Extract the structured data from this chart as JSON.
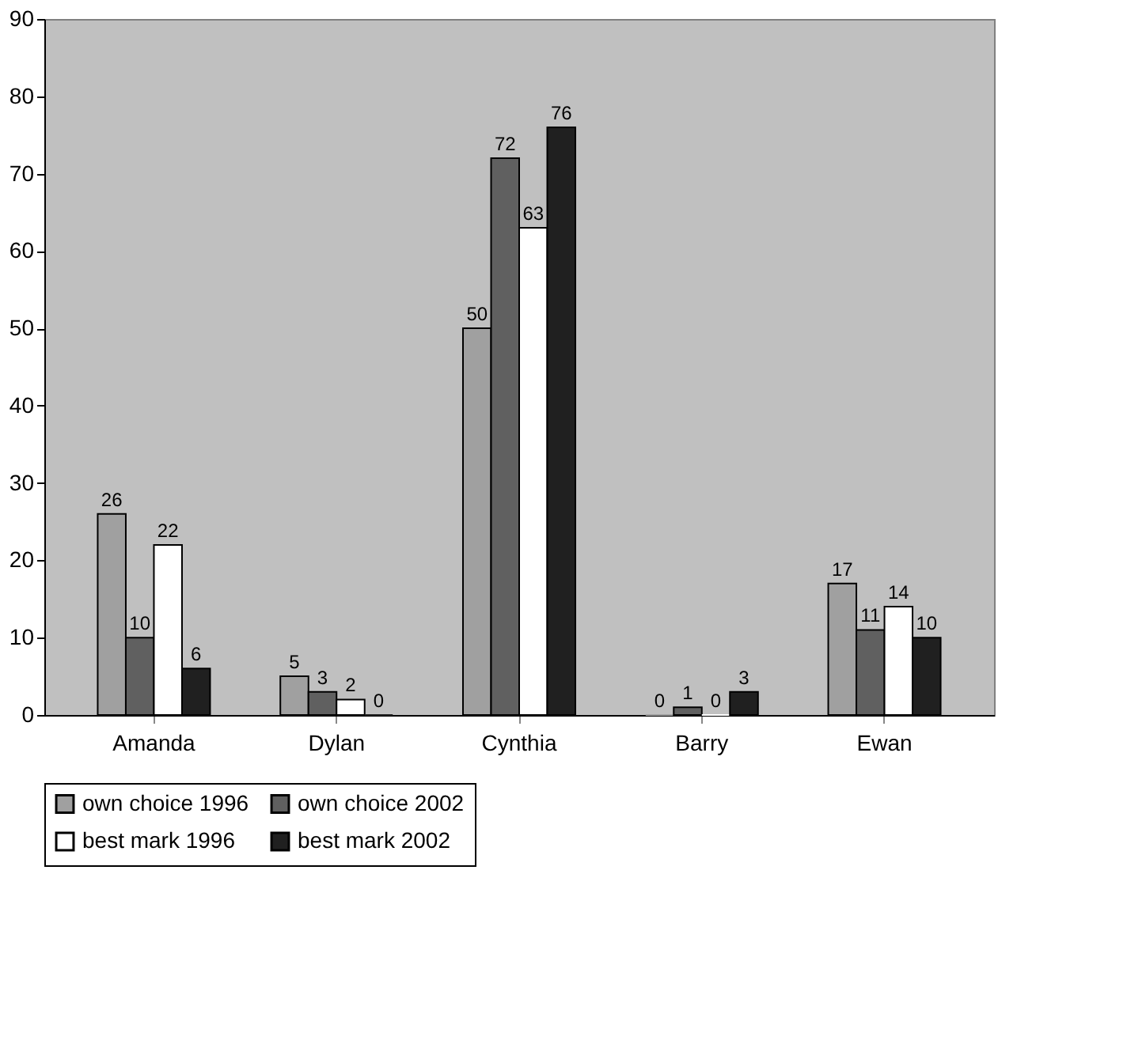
{
  "chart_data": {
    "type": "bar",
    "categories": [
      "Amanda",
      "Dylan",
      "Cynthia",
      "Barry",
      "Ewan"
    ],
    "series": [
      {
        "name": "own choice 1996",
        "color": "#a0a0a0",
        "values": [
          26,
          5,
          50,
          0,
          17
        ]
      },
      {
        "name": "own choice 2002",
        "color": "#606060",
        "values": [
          10,
          3,
          72,
          1,
          11
        ]
      },
      {
        "name": "best mark 1996",
        "color": "#ffffff",
        "values": [
          22,
          2,
          63,
          0,
          14
        ]
      },
      {
        "name": "best mark 2002",
        "color": "#202020",
        "values": [
          6,
          0,
          76,
          3,
          10
        ]
      }
    ],
    "ylim": [
      0,
      90
    ],
    "yticks": [
      0,
      10,
      20,
      30,
      40,
      50,
      60,
      70,
      80,
      90
    ],
    "data_labels": true,
    "grid": false,
    "legend": "bottom"
  }
}
